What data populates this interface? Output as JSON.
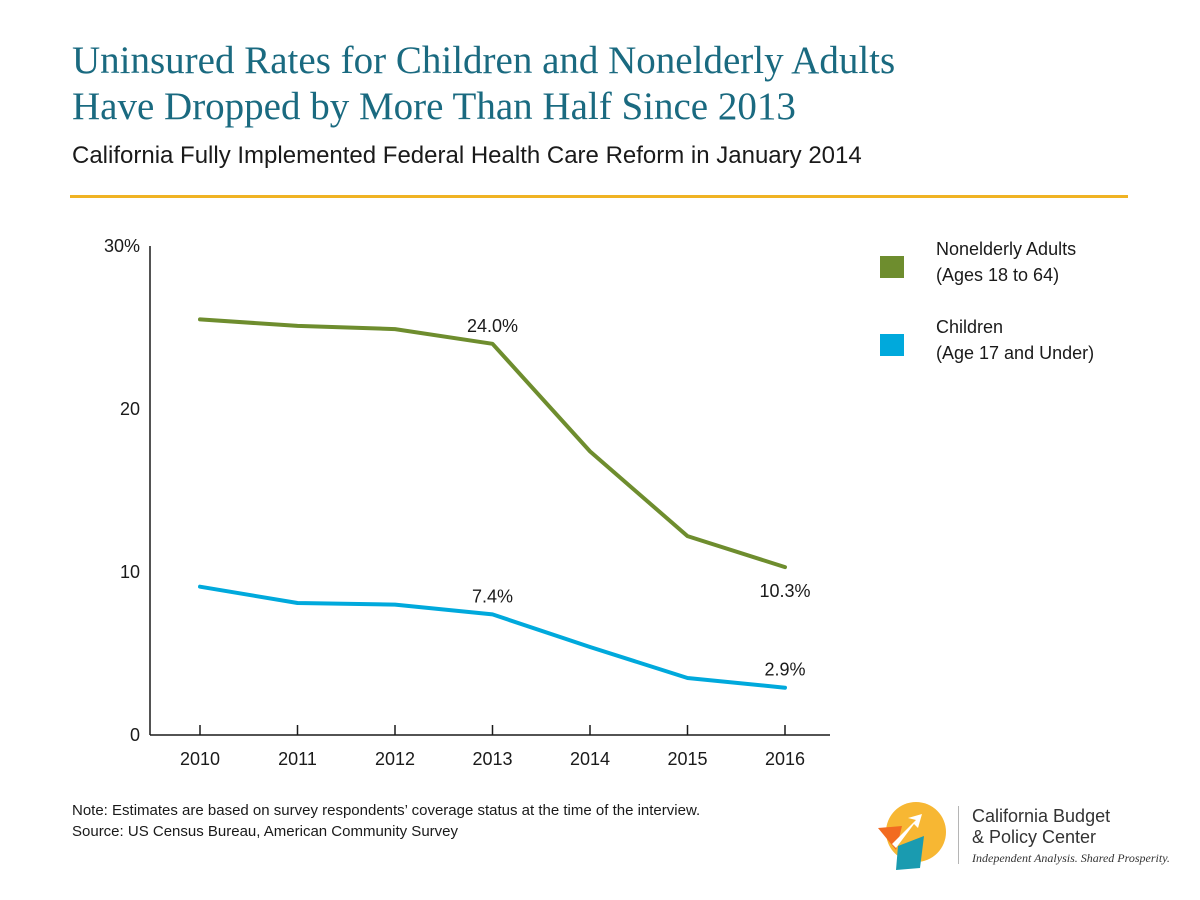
{
  "header": {
    "title_line1": "Uninsured Rates for Children and Nonelderly Adults",
    "title_line2": "Have Dropped by More Than Half Since 2013",
    "subtitle": "California Fully Implemented Federal Health Care Reform in January 2014"
  },
  "chart_data": {
    "type": "line",
    "x": [
      2010,
      2011,
      2012,
      2013,
      2014,
      2015,
      2016
    ],
    "y_ticks": [
      {
        "value": 0,
        "label": "0"
      },
      {
        "value": 10,
        "label": "10"
      },
      {
        "value": 20,
        "label": "20"
      },
      {
        "value": 30,
        "label": "30%"
      }
    ],
    "ylim": [
      0,
      30
    ],
    "grid": false,
    "legend_position": "right",
    "series": [
      {
        "key": "adults",
        "name_line1": "Nonelderly Adults",
        "name_line2": "(Ages 18 to 64)",
        "color": "#6e8d2e",
        "values": [
          25.5,
          25.1,
          24.9,
          24.0,
          17.4,
          12.2,
          10.3
        ],
        "labels": [
          {
            "index": 3,
            "text": "24.0%",
            "position": "above"
          },
          {
            "index": 6,
            "text": "10.3%",
            "position": "below"
          }
        ]
      },
      {
        "key": "children",
        "name_line1": "Children",
        "name_line2": "(Age 17 and Under)",
        "color": "#00a9dc",
        "values": [
          9.1,
          8.1,
          8.0,
          7.4,
          5.4,
          3.5,
          2.9
        ],
        "labels": [
          {
            "index": 3,
            "text": "7.4%",
            "position": "above"
          },
          {
            "index": 6,
            "text": "2.9%",
            "position": "above"
          }
        ]
      }
    ]
  },
  "notes": {
    "note": "Note: Estimates are based on survey respondents’ coverage status at the time of the interview.",
    "source": "Source: US Census Bureau, American Community Survey"
  },
  "logo": {
    "name_line1": "California Budget",
    "name_line2": "& Policy Center",
    "tagline": "Independent Analysis. Shared Prosperity."
  },
  "colors": {
    "title": "#1a6a80",
    "rule": "#f0b323",
    "adults": "#6e8d2e",
    "children": "#00a9dc"
  }
}
